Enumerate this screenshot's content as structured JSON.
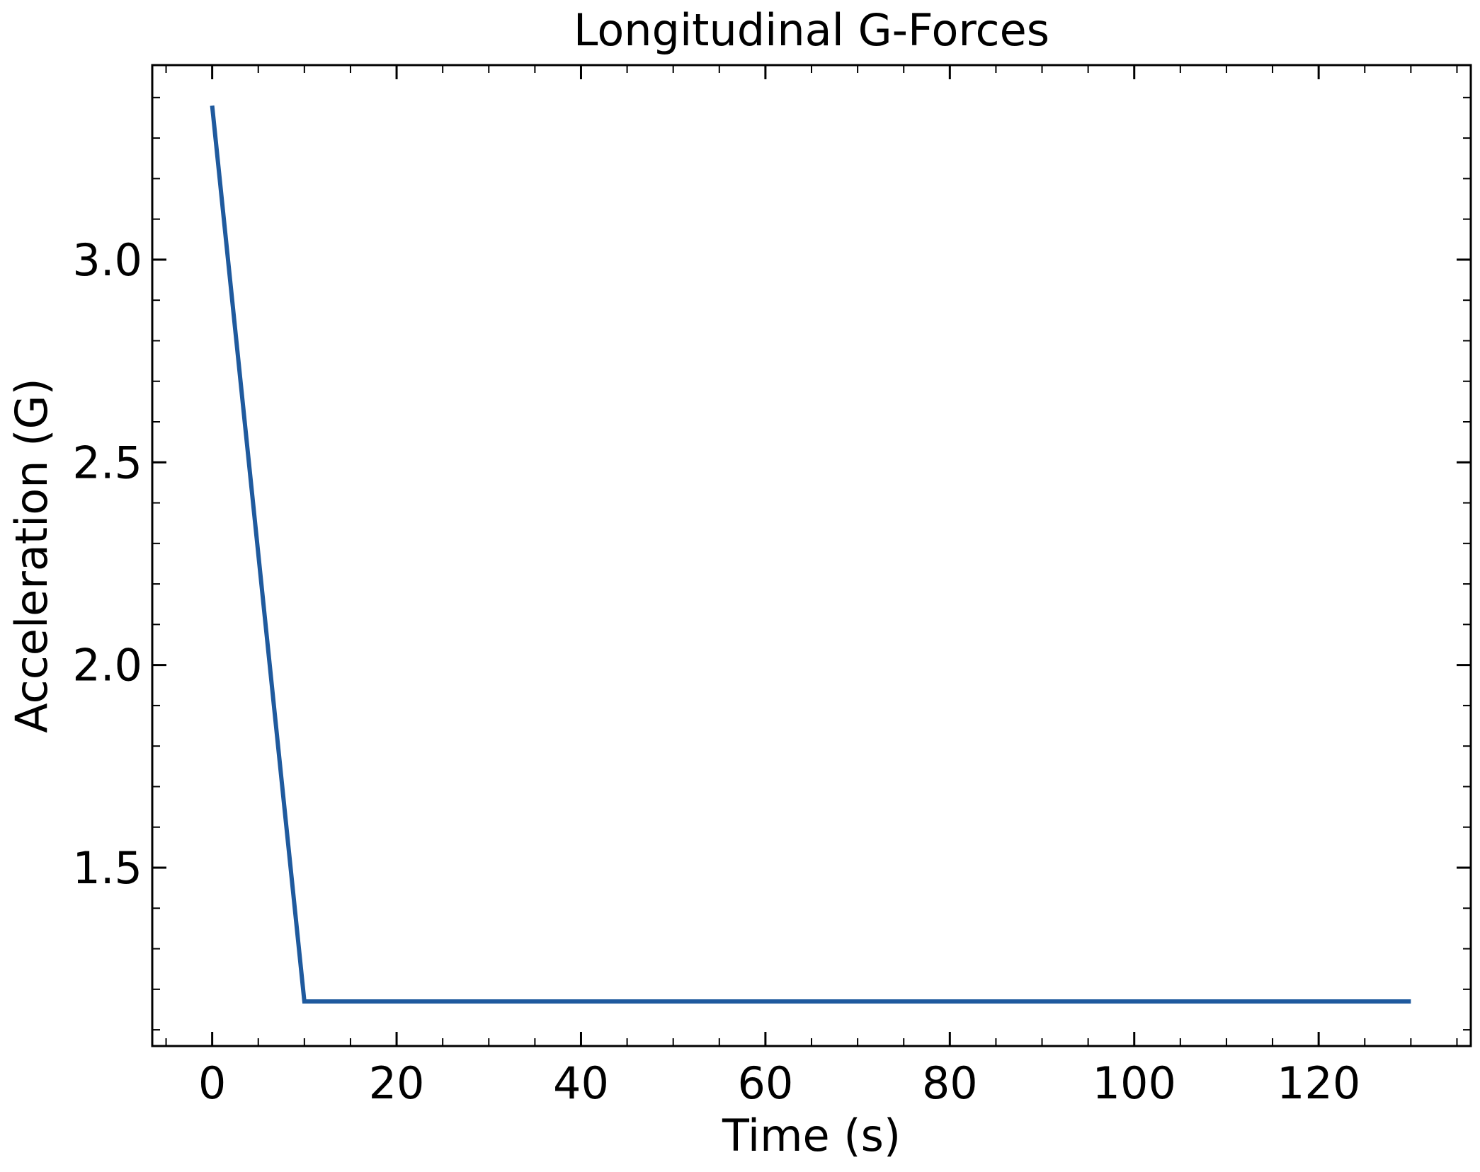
{
  "chart_data": {
    "type": "line",
    "title": "Longitudinal G-Forces",
    "xlabel": "Time (s)",
    "ylabel": "Acceleration (G)",
    "xlim": [
      -6.5,
      136.5
    ],
    "ylim": [
      1.06,
      3.48
    ],
    "xticks": [
      {
        "value": 0,
        "label": "0"
      },
      {
        "value": 20,
        "label": "20"
      },
      {
        "value": 40,
        "label": "40"
      },
      {
        "value": 60,
        "label": "60"
      },
      {
        "value": 80,
        "label": "80"
      },
      {
        "value": 100,
        "label": "100"
      },
      {
        "value": 120,
        "label": "120"
      }
    ],
    "yticks": [
      {
        "value": 1.5,
        "label": "1.5"
      },
      {
        "value": 2.0,
        "label": "2.0"
      },
      {
        "value": 2.5,
        "label": "2.5"
      },
      {
        "value": 3.0,
        "label": "3.0"
      }
    ],
    "x_minor_step": 5,
    "y_minor_step": 0.1,
    "grid": false,
    "series": [
      {
        "color": "#1f5a9e",
        "x": [
          0,
          10,
          130
        ],
        "y": [
          3.38,
          1.17,
          1.17
        ]
      }
    ]
  }
}
